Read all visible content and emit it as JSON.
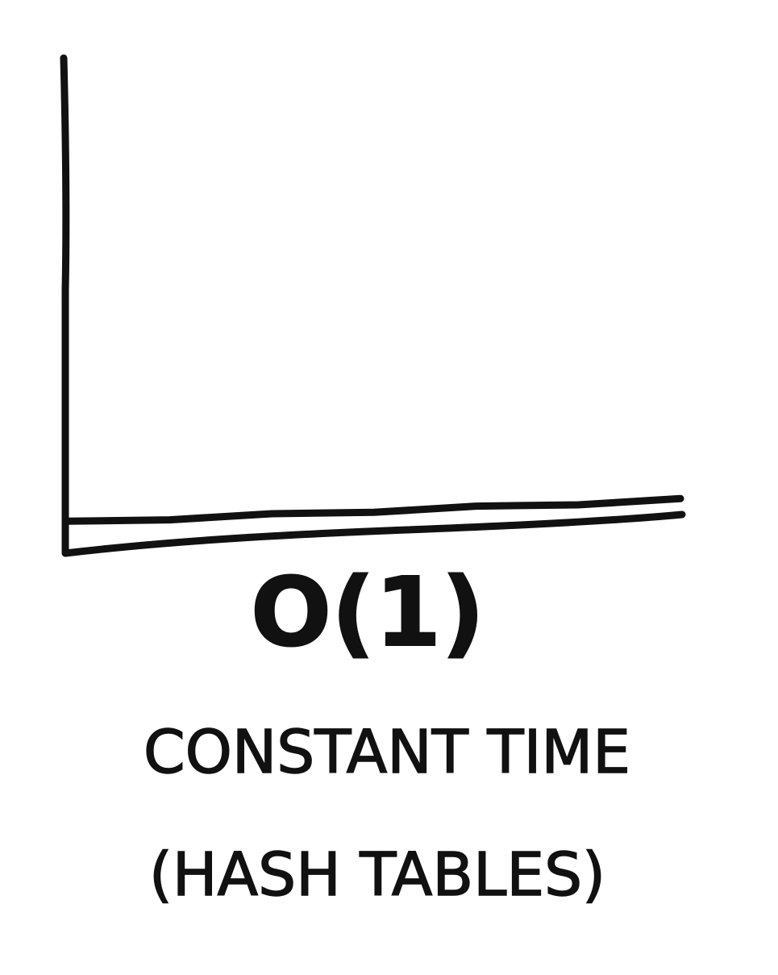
{
  "chart_data": {
    "type": "line",
    "title": "",
    "notation": "O(1)",
    "caption": "CONSTANT TIME",
    "subcaption": "(HASH TABLES)",
    "xlabel": "",
    "ylabel": "",
    "x_ticks": false,
    "y_ticks": false,
    "grid": false,
    "legend": false,
    "xlim": [
      0,
      1
    ],
    "ylim": [
      0,
      1
    ],
    "series": [
      {
        "x": [
          0,
          1
        ],
        "y": [
          0.07,
          0.07
        ]
      }
    ]
  },
  "colors": {
    "ink": "#111111",
    "background": "#ffffff"
  }
}
